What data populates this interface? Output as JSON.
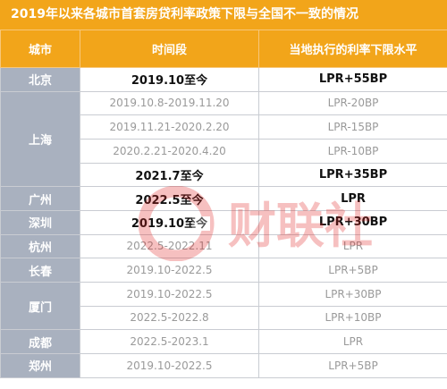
{
  "title": "2019年以来各城市首套房贷利率政策下限与全国不一致的情况",
  "headers": {
    "city": "城市",
    "period": "时间段",
    "level": "当地执行的利率下限水平"
  },
  "rows": {
    "beijing": {
      "city": "北京",
      "period": "2019.10至今",
      "level": "LPR+55BP"
    },
    "shanghai": {
      "city": "上海",
      "r1": {
        "period": "2019.10.8-2019.11.20",
        "level": "LPR-20BP"
      },
      "r2": {
        "period": "2019.11.21-2020.2.20",
        "level": "LPR-15BP"
      },
      "r3": {
        "period": "2020.2.21-2020.4.20",
        "level": "LPR-10BP"
      },
      "r4": {
        "period": "2021.7至今",
        "level": "LPR+35BP"
      }
    },
    "guangzhou": {
      "city": "广州",
      "period": "2022.5至今",
      "level": "LPR"
    },
    "shenzhen": {
      "city": "深圳",
      "period": "2019.10至今",
      "level": "LPR+30BP"
    },
    "hangzhou": {
      "city": "杭州",
      "period": "2022.5-2022.11",
      "level": "LPR"
    },
    "changchun": {
      "city": "长春",
      "period": "2019.10-2022.5",
      "level": "LPR+5BP"
    },
    "xiamen": {
      "city": "厦门",
      "r1": {
        "period": "2019.10-2022.5",
        "level": "LPR+30BP"
      },
      "r2": {
        "period": "2022.5-2022.8",
        "level": "LPR+10BP"
      }
    },
    "chengdu": {
      "city": "成都",
      "period": "2022.5-2023.1",
      "level": "LPR"
    },
    "zhengzhou": {
      "city": "郑州",
      "period": "2019.10-2022.5",
      "level": "LPR+5BP"
    }
  },
  "watermark": {
    "text": "财联社",
    "color": "#e0211f"
  }
}
